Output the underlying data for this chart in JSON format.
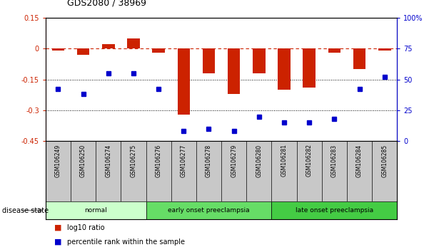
{
  "title": "GDS2080 / 38969",
  "samples": [
    "GSM106249",
    "GSM106250",
    "GSM106274",
    "GSM106275",
    "GSM106276",
    "GSM106277",
    "GSM106278",
    "GSM106279",
    "GSM106280",
    "GSM106281",
    "GSM106282",
    "GSM106283",
    "GSM106284",
    "GSM106285"
  ],
  "log10_ratio": [
    -0.01,
    -0.03,
    0.02,
    0.05,
    -0.02,
    -0.32,
    -0.12,
    -0.22,
    -0.12,
    -0.2,
    -0.19,
    -0.02,
    -0.1,
    -0.01
  ],
  "percentile_rank": [
    42,
    38,
    55,
    55,
    42,
    8,
    10,
    8,
    20,
    15,
    15,
    18,
    42,
    52
  ],
  "ylim_left": [
    -0.45,
    0.15
  ],
  "ylim_right": [
    0,
    100
  ],
  "yticks_left": [
    -0.45,
    -0.3,
    -0.15,
    0,
    0.15
  ],
  "yticks_right": [
    0,
    25,
    50,
    75,
    100
  ],
  "ytick_labels_left": [
    "-0.45",
    "-0.3",
    "-0.15",
    "0",
    "0.15"
  ],
  "ytick_labels_right": [
    "0",
    "25",
    "50",
    "75",
    "100%"
  ],
  "dotted_lines": [
    -0.15,
    -0.3
  ],
  "bar_color": "#cc2200",
  "dot_color": "#0000cc",
  "dashed_line_color": "#cc2200",
  "disease_groups": [
    {
      "label": "normal",
      "start": 0,
      "end": 3,
      "color": "#ccffcc"
    },
    {
      "label": "early onset preeclampsia",
      "start": 4,
      "end": 8,
      "color": "#66dd66"
    },
    {
      "label": "late onset preeclampsia",
      "start": 9,
      "end": 13,
      "color": "#44cc44"
    }
  ],
  "legend_items": [
    {
      "label": "log10 ratio",
      "color": "#cc2200"
    },
    {
      "label": "percentile rank within the sample",
      "color": "#0000cc"
    }
  ],
  "disease_state_label": "disease state",
  "background_color": "#ffffff",
  "tick_label_area_color": "#c8c8c8"
}
